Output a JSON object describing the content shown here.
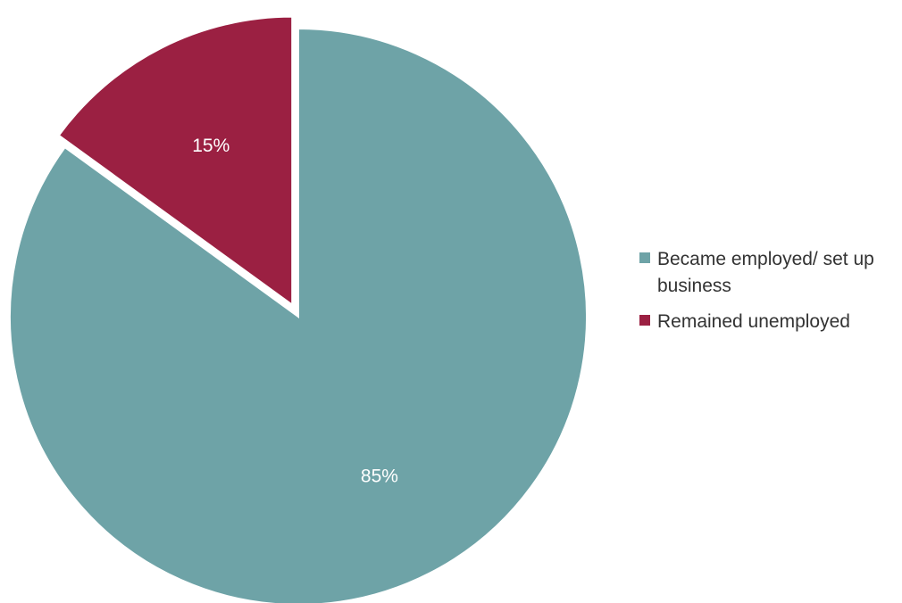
{
  "chart_data": {
    "type": "pie",
    "slices": [
      {
        "label": "Became employed/ set up business",
        "value": 85,
        "value_label": "85%",
        "color": "#6ea3a7"
      },
      {
        "label": "Remained unemployed",
        "value": 15,
        "value_label": "15%",
        "color": "#9b2042",
        "exploded": true
      }
    ],
    "legend_placement": "right"
  }
}
